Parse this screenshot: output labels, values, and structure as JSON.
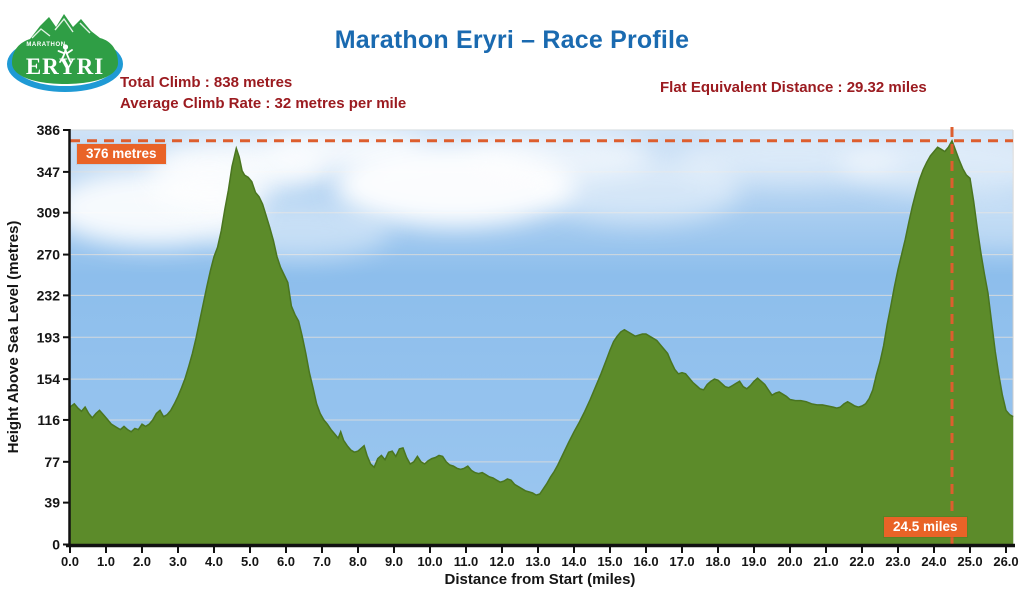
{
  "title": "Marathon Eryri – Race Profile",
  "logo": {
    "brand": "ERYRI",
    "sub": "MARATHON"
  },
  "stats": {
    "total_climb_label": "Total Climb : 838 metres",
    "avg_climb_rate_label": "Average Climb Rate : 32 metres per mile",
    "flat_equivalent_label": "Flat Equivalent Distance : 29.32 miles",
    "total_climb_metres": 838,
    "avg_climb_rate_metres_per_mile": 32,
    "flat_equivalent_miles": 29.32
  },
  "annotations": {
    "peak_label": "376 metres",
    "peak_mile_label": "24.5 miles",
    "peak_elevation": 376,
    "peak_mile": 24.5
  },
  "colors": {
    "title_blue": "#1a6ab0",
    "stats_red": "#9b1b20",
    "accent_orange": "#dd5e2e",
    "badge_orange": "#e96327",
    "profile_green": "#5c8b2a",
    "profile_green_edge": "#4a7520",
    "sky_top": "#cfe2f6",
    "sky_mid": "#8dbeec",
    "sky_bottom": "#9cc7f0",
    "gridline": "#d2d8dd",
    "axis_black": "#111111",
    "logo_green": "#2f9e45",
    "logo_blue": "#1f9ad5"
  },
  "chart_data": {
    "type": "area",
    "title": "Marathon Eryri – Race Profile",
    "xlabel": "Distance from Start (miles)",
    "ylabel": "Height Above Sea Level (metres)",
    "xlim": [
      0,
      26.2
    ],
    "ylim": [
      0,
      386
    ],
    "grid": "horizontal-only",
    "x_tick_labels": [
      "0.0",
      "1.0",
      "2.0",
      "3.0",
      "4.0",
      "5.0",
      "6.0",
      "7.0",
      "8.0",
      "9.0",
      "10.0",
      "11.0",
      "12.0",
      "13.0",
      "14.0",
      "15.0",
      "16.0",
      "17.0",
      "18.0",
      "19.0",
      "20.0",
      "21.0",
      "22.0",
      "23.0",
      "24.0",
      "25.0",
      "26.0"
    ],
    "y_ticks": [
      0,
      39,
      77,
      116,
      154,
      193,
      232,
      270,
      309,
      347,
      386
    ],
    "profile": [
      [
        0,
        128
      ],
      [
        0.12,
        131
      ],
      [
        0.22,
        127
      ],
      [
        0.32,
        124
      ],
      [
        0.42,
        128
      ],
      [
        0.52,
        122
      ],
      [
        0.62,
        118
      ],
      [
        0.72,
        122
      ],
      [
        0.82,
        125
      ],
      [
        0.95,
        120
      ],
      [
        1.05,
        116
      ],
      [
        1.15,
        112
      ],
      [
        1.3,
        109
      ],
      [
        1.4,
        107
      ],
      [
        1.5,
        110
      ],
      [
        1.6,
        107
      ],
      [
        1.7,
        105
      ],
      [
        1.8,
        108
      ],
      [
        1.9,
        107
      ],
      [
        2,
        112
      ],
      [
        2.1,
        110
      ],
      [
        2.2,
        112
      ],
      [
        2.3,
        116
      ],
      [
        2.4,
        122
      ],
      [
        2.5,
        125
      ],
      [
        2.6,
        119
      ],
      [
        2.7,
        121
      ],
      [
        2.8,
        125
      ],
      [
        2.9,
        131
      ],
      [
        3,
        138
      ],
      [
        3.1,
        146
      ],
      [
        3.2,
        155
      ],
      [
        3.3,
        166
      ],
      [
        3.4,
        178
      ],
      [
        3.5,
        192
      ],
      [
        3.6,
        208
      ],
      [
        3.7,
        224
      ],
      [
        3.8,
        240
      ],
      [
        3.9,
        255
      ],
      [
        4,
        268
      ],
      [
        4.1,
        277
      ],
      [
        4.2,
        292
      ],
      [
        4.3,
        312
      ],
      [
        4.4,
        330
      ],
      [
        4.5,
        352
      ],
      [
        4.62,
        369
      ],
      [
        4.7,
        361
      ],
      [
        4.78,
        348
      ],
      [
        4.85,
        344
      ],
      [
        4.95,
        342
      ],
      [
        5.05,
        338
      ],
      [
        5.15,
        328
      ],
      [
        5.25,
        324
      ],
      [
        5.35,
        317
      ],
      [
        5.45,
        306
      ],
      [
        5.55,
        295
      ],
      [
        5.65,
        283
      ],
      [
        5.75,
        268
      ],
      [
        5.85,
        258
      ],
      [
        5.95,
        251
      ],
      [
        6.05,
        244
      ],
      [
        6.15,
        222
      ],
      [
        6.25,
        214
      ],
      [
        6.35,
        208
      ],
      [
        6.45,
        194
      ],
      [
        6.55,
        178
      ],
      [
        6.65,
        160
      ],
      [
        6.75,
        146
      ],
      [
        6.85,
        131
      ],
      [
        6.95,
        122
      ],
      [
        7.05,
        116
      ],
      [
        7.15,
        112
      ],
      [
        7.25,
        107
      ],
      [
        7.35,
        103
      ],
      [
        7.45,
        99
      ],
      [
        7.52,
        105
      ],
      [
        7.6,
        97
      ],
      [
        7.7,
        92
      ],
      [
        7.8,
        88
      ],
      [
        7.9,
        86
      ],
      [
        8,
        87
      ],
      [
        8.1,
        90
      ],
      [
        8.17,
        92
      ],
      [
        8.25,
        83
      ],
      [
        8.35,
        75
      ],
      [
        8.45,
        72
      ],
      [
        8.55,
        80
      ],
      [
        8.65,
        83
      ],
      [
        8.75,
        79
      ],
      [
        8.85,
        86
      ],
      [
        8.95,
        87
      ],
      [
        9.05,
        82
      ],
      [
        9.15,
        89
      ],
      [
        9.25,
        90
      ],
      [
        9.35,
        81
      ],
      [
        9.45,
        75
      ],
      [
        9.55,
        77
      ],
      [
        9.65,
        82
      ],
      [
        9.75,
        77
      ],
      [
        9.85,
        75
      ],
      [
        9.95,
        78
      ],
      [
        10.05,
        80
      ],
      [
        10.15,
        81
      ],
      [
        10.25,
        83
      ],
      [
        10.35,
        82
      ],
      [
        10.45,
        77
      ],
      [
        10.55,
        74
      ],
      [
        10.65,
        73
      ],
      [
        10.75,
        71
      ],
      [
        10.85,
        70
      ],
      [
        10.95,
        71
      ],
      [
        11.05,
        73
      ],
      [
        11.15,
        69
      ],
      [
        11.25,
        67
      ],
      [
        11.35,
        66
      ],
      [
        11.45,
        67
      ],
      [
        11.55,
        65
      ],
      [
        11.65,
        63
      ],
      [
        11.75,
        62
      ],
      [
        11.85,
        60
      ],
      [
        11.95,
        58
      ],
      [
        12.05,
        59
      ],
      [
        12.15,
        61
      ],
      [
        12.25,
        60
      ],
      [
        12.35,
        56
      ],
      [
        12.45,
        54
      ],
      [
        12.55,
        52
      ],
      [
        12.65,
        50
      ],
      [
        12.75,
        49
      ],
      [
        12.85,
        48
      ],
      [
        12.95,
        46
      ],
      [
        13.05,
        47
      ],
      [
        13.15,
        52
      ],
      [
        13.25,
        57
      ],
      [
        13.35,
        63
      ],
      [
        13.45,
        68
      ],
      [
        13.55,
        74
      ],
      [
        13.65,
        81
      ],
      [
        13.75,
        88
      ],
      [
        13.85,
        95
      ],
      [
        14,
        105
      ],
      [
        14.15,
        114
      ],
      [
        14.3,
        124
      ],
      [
        14.45,
        135
      ],
      [
        14.6,
        147
      ],
      [
        14.75,
        159
      ],
      [
        14.9,
        172
      ],
      [
        15,
        181
      ],
      [
        15.1,
        189
      ],
      [
        15.2,
        194
      ],
      [
        15.3,
        198
      ],
      [
        15.4,
        200
      ],
      [
        15.5,
        198
      ],
      [
        15.6,
        196
      ],
      [
        15.7,
        194
      ],
      [
        15.8,
        195
      ],
      [
        15.9,
        196
      ],
      [
        16,
        196
      ],
      [
        16.1,
        194
      ],
      [
        16.2,
        192
      ],
      [
        16.3,
        190
      ],
      [
        16.4,
        186
      ],
      [
        16.5,
        182
      ],
      [
        16.6,
        178
      ],
      [
        16.7,
        170
      ],
      [
        16.8,
        163
      ],
      [
        16.9,
        159
      ],
      [
        17,
        160
      ],
      [
        17.1,
        159
      ],
      [
        17.2,
        155
      ],
      [
        17.3,
        151
      ],
      [
        17.4,
        148
      ],
      [
        17.5,
        145
      ],
      [
        17.6,
        144
      ],
      [
        17.7,
        149
      ],
      [
        17.8,
        152
      ],
      [
        17.9,
        154
      ],
      [
        18,
        153
      ],
      [
        18.1,
        150
      ],
      [
        18.2,
        147
      ],
      [
        18.3,
        146
      ],
      [
        18.4,
        148
      ],
      [
        18.5,
        150
      ],
      [
        18.6,
        152
      ],
      [
        18.7,
        147
      ],
      [
        18.8,
        145
      ],
      [
        18.9,
        148
      ],
      [
        19,
        152
      ],
      [
        19.1,
        155
      ],
      [
        19.2,
        152
      ],
      [
        19.3,
        149
      ],
      [
        19.4,
        144
      ],
      [
        19.5,
        139
      ],
      [
        19.6,
        141
      ],
      [
        19.7,
        142
      ],
      [
        19.8,
        140
      ],
      [
        19.9,
        138
      ],
      [
        20,
        135
      ],
      [
        20.15,
        134
      ],
      [
        20.3,
        134
      ],
      [
        20.45,
        133
      ],
      [
        20.6,
        131
      ],
      [
        20.75,
        130
      ],
      [
        20.9,
        130
      ],
      [
        21.05,
        129
      ],
      [
        21.2,
        128
      ],
      [
        21.3,
        127
      ],
      [
        21.4,
        128
      ],
      [
        21.5,
        131
      ],
      [
        21.6,
        133
      ],
      [
        21.7,
        131
      ],
      [
        21.8,
        129
      ],
      [
        21.9,
        128
      ],
      [
        22,
        129
      ],
      [
        22.1,
        131
      ],
      [
        22.2,
        136
      ],
      [
        22.3,
        144
      ],
      [
        22.4,
        158
      ],
      [
        22.5,
        170
      ],
      [
        22.6,
        185
      ],
      [
        22.7,
        205
      ],
      [
        22.8,
        222
      ],
      [
        22.9,
        240
      ],
      [
        23,
        256
      ],
      [
        23.1,
        270
      ],
      [
        23.2,
        284
      ],
      [
        23.3,
        300
      ],
      [
        23.4,
        315
      ],
      [
        23.5,
        328
      ],
      [
        23.6,
        340
      ],
      [
        23.7,
        349
      ],
      [
        23.8,
        356
      ],
      [
        23.9,
        362
      ],
      [
        24,
        366
      ],
      [
        24.1,
        370
      ],
      [
        24.2,
        368
      ],
      [
        24.3,
        366
      ],
      [
        24.4,
        370
      ],
      [
        24.5,
        376
      ],
      [
        24.6,
        367
      ],
      [
        24.7,
        358
      ],
      [
        24.8,
        350
      ],
      [
        24.9,
        344
      ],
      [
        25,
        341
      ],
      [
        25.1,
        320
      ],
      [
        25.2,
        295
      ],
      [
        25.3,
        272
      ],
      [
        25.4,
        252
      ],
      [
        25.5,
        234
      ],
      [
        25.6,
        207
      ],
      [
        25.7,
        180
      ],
      [
        25.8,
        158
      ],
      [
        25.9,
        139
      ],
      [
        26,
        125
      ],
      [
        26.1,
        121
      ],
      [
        26.2,
        119
      ]
    ]
  }
}
